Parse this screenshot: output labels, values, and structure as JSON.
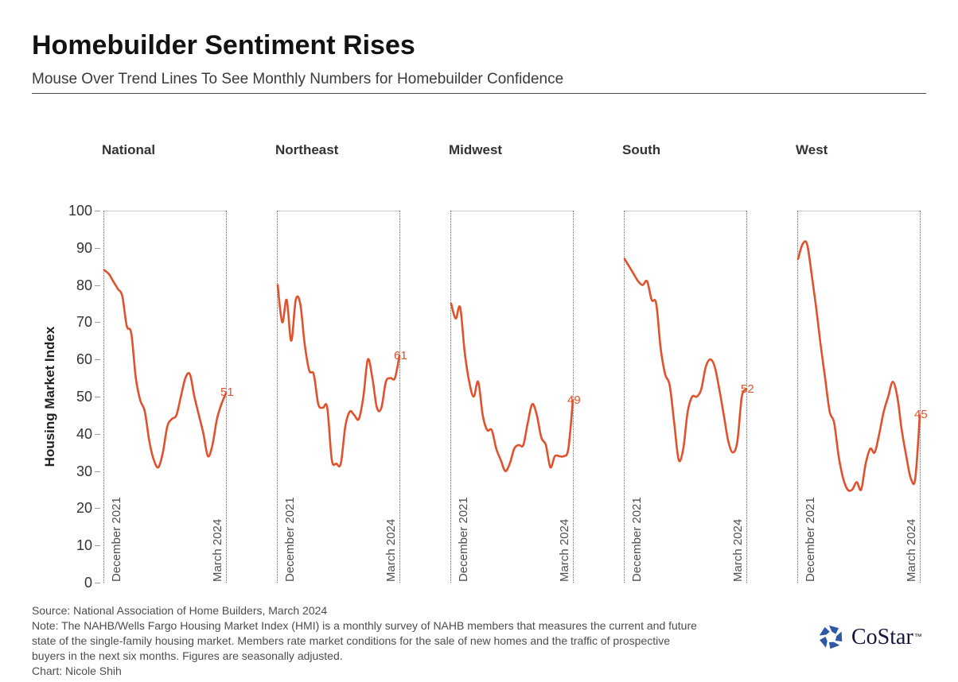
{
  "header": {
    "title": "Homebuilder Sentiment Rises",
    "subtitle": "Mouse Over Trend Lines To See Monthly Numbers for Homebuilder Confidence"
  },
  "chart_data": {
    "type": "line",
    "ylabel": "Housing Market Index",
    "ylim": [
      0,
      100
    ],
    "yticks": [
      0,
      10,
      20,
      30,
      40,
      50,
      60,
      70,
      80,
      90,
      100
    ],
    "x_start_label": "December 2021",
    "x_end_label": "March 2024",
    "points_per_series": 28,
    "line_color": "#e0512c",
    "grid": "top-line-only",
    "series": [
      {
        "name": "National",
        "values": [
          84,
          83,
          81,
          79,
          77,
          69,
          67,
          55,
          49,
          46,
          38,
          33,
          31,
          35,
          42,
          44,
          45,
          50,
          55,
          56,
          50,
          45,
          40,
          34,
          37,
          44,
          48,
          51
        ],
        "end_label": "51"
      },
      {
        "name": "Northeast",
        "values": [
          80,
          70,
          76,
          65,
          76,
          75,
          64,
          57,
          56,
          48,
          47,
          47,
          33,
          32,
          32,
          42,
          46,
          45,
          44,
          50,
          60,
          55,
          47,
          47,
          54,
          55,
          55,
          61
        ],
        "end_label": "61"
      },
      {
        "name": "Midwest",
        "values": [
          75,
          71,
          74,
          62,
          54,
          50,
          54,
          45,
          41,
          41,
          36,
          33,
          30,
          32,
          36,
          37,
          37,
          43,
          48,
          45,
          39,
          37,
          31,
          34,
          34,
          34,
          36,
          49
        ],
        "end_label": "49"
      },
      {
        "name": "South",
        "values": [
          87,
          85,
          83,
          81,
          80,
          81,
          76,
          75,
          63,
          56,
          53,
          43,
          33,
          36,
          46,
          50,
          50,
          52,
          58,
          60,
          58,
          52,
          45,
          38,
          35,
          38,
          50,
          52
        ],
        "end_label": "52"
      },
      {
        "name": "West",
        "values": [
          87,
          91,
          91,
          83,
          74,
          64,
          55,
          46,
          43,
          34,
          28,
          25,
          25,
          27,
          25,
          32,
          36,
          35,
          40,
          46,
          50,
          54,
          50,
          41,
          34,
          28,
          28,
          45
        ],
        "end_label": "45"
      }
    ]
  },
  "footer": {
    "source": "Source: National Association of Home Builders, March 2024",
    "note_lines": [
      "Note: The NAHB/Wells Fargo Housing Market Index (HMI) is a monthly survey of NAHB members that measures the current and future",
      "state of the single-family housing market. Members rate market conditions for the sale of new homes and the traffic of prospective",
      "buyers in the next six months. Figures are seasonally adjusted."
    ],
    "credit": "Chart: Nicole Shih"
  },
  "logo": {
    "text": "CoStar",
    "trademark": "™",
    "icon_color": "#2e57a5",
    "text_color": "#15153d"
  }
}
